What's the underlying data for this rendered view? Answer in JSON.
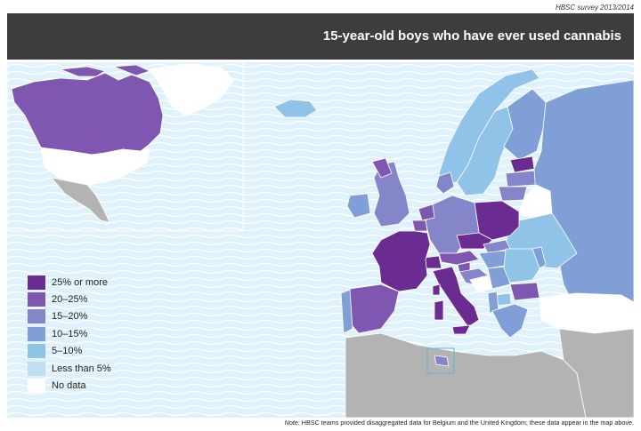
{
  "survey_label": "HBSC survey 2013/2014",
  "title": "15-year-old boys who have ever used cannabis",
  "colors": {
    "c25plus": "#6a2c91",
    "c20_25": "#8057b0",
    "c15_20": "#8585c9",
    "c10_15": "#7f9fd6",
    "c5_10": "#8fc3e8",
    "less5": "#c2dff2",
    "nodata": "#ffffff",
    "nonmember": "#b3b3b3",
    "sea": "#dff2fb",
    "wave": "#ffffff",
    "title_bg": "#3d3d3d"
  },
  "legend": [
    {
      "label": "25% or more",
      "color_key": "c25plus"
    },
    {
      "label": "20–25%",
      "color_key": "c20_25"
    },
    {
      "label": "15–20%",
      "color_key": "c15_20"
    },
    {
      "label": "10–15%",
      "color_key": "c10_15"
    },
    {
      "label": "5–10%",
      "color_key": "c5_10"
    },
    {
      "label": "Less than 5%",
      "color_key": "less5"
    },
    {
      "label": "No data",
      "color_key": "nodata"
    }
  ],
  "note": {
    "prefix": "Note:",
    "text": " HBSC teams provided disaggregated data for Belgium and the United Kingdom; these data appear in the map above."
  }
}
